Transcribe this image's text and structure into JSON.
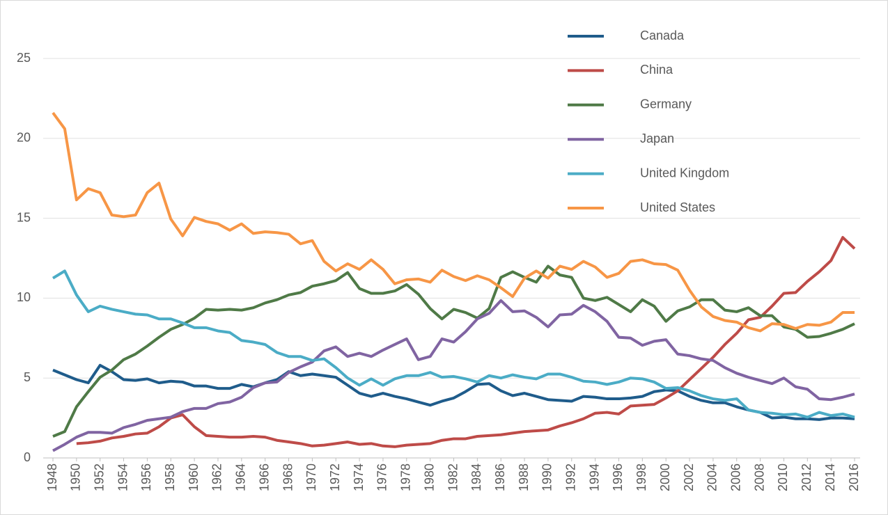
{
  "chart_data": {
    "type": "line",
    "x": [
      1948,
      1949,
      1950,
      1951,
      1952,
      1953,
      1954,
      1955,
      1956,
      1957,
      1958,
      1959,
      1960,
      1961,
      1962,
      1963,
      1964,
      1965,
      1966,
      1967,
      1968,
      1969,
      1970,
      1971,
      1972,
      1973,
      1974,
      1975,
      1976,
      1977,
      1978,
      1979,
      1980,
      1981,
      1982,
      1983,
      1984,
      1985,
      1986,
      1987,
      1988,
      1989,
      1990,
      1991,
      1992,
      1993,
      1994,
      1995,
      1996,
      1997,
      1998,
      1999,
      2000,
      2001,
      2002,
      2003,
      2004,
      2005,
      2006,
      2007,
      2008,
      2009,
      2010,
      2011,
      2012,
      2013,
      2014,
      2015,
      2016
    ],
    "xlim": [
      1948,
      2016
    ],
    "xticks": [
      1948,
      1950,
      1952,
      1954,
      1956,
      1958,
      1960,
      1962,
      1964,
      1966,
      1968,
      1970,
      1972,
      1974,
      1976,
      1978,
      1980,
      1982,
      1984,
      1986,
      1988,
      1990,
      1992,
      1994,
      1996,
      1998,
      2000,
      2002,
      2004,
      2006,
      2008,
      2010,
      2012,
      2014,
      2016
    ],
    "ylim": [
      0,
      25
    ],
    "yticks": [
      0,
      5,
      10,
      15,
      20,
      25
    ],
    "grid": true,
    "legend": "top-right",
    "series": [
      {
        "name": "Canada",
        "color": "#1f5c8b",
        "values": [
          5.5,
          5.2,
          4.9,
          4.7,
          5.8,
          5.4,
          4.9,
          4.85,
          4.95,
          4.7,
          4.8,
          4.75,
          4.5,
          4.5,
          4.35,
          4.35,
          4.6,
          4.45,
          4.7,
          4.9,
          5.4,
          5.15,
          5.25,
          5.15,
          5.05,
          4.55,
          4.05,
          3.85,
          4.05,
          3.85,
          3.7,
          3.5,
          3.3,
          3.55,
          3.75,
          4.15,
          4.6,
          4.65,
          4.2,
          3.9,
          4.05,
          3.85,
          3.65,
          3.6,
          3.55,
          3.85,
          3.8,
          3.7,
          3.7,
          3.75,
          3.85,
          4.15,
          4.25,
          4.2,
          3.85,
          3.6,
          3.45,
          3.45,
          3.2,
          3.0,
          2.85,
          2.5,
          2.55,
          2.45,
          2.45,
          2.4,
          2.5,
          2.5,
          2.45
        ]
      },
      {
        "name": "China",
        "color": "#be4b48",
        "values": [
          null,
          null,
          0.9,
          0.95,
          1.05,
          1.25,
          1.35,
          1.5,
          1.55,
          1.95,
          2.5,
          2.7,
          1.95,
          1.4,
          1.35,
          1.3,
          1.3,
          1.35,
          1.3,
          1.1,
          1.0,
          0.9,
          0.75,
          0.8,
          0.9,
          1.0,
          0.85,
          0.9,
          0.75,
          0.7,
          0.8,
          0.85,
          0.9,
          1.1,
          1.2,
          1.2,
          1.35,
          1.4,
          1.45,
          1.55,
          1.65,
          1.7,
          1.75,
          2.0,
          2.2,
          2.45,
          2.8,
          2.85,
          2.75,
          3.25,
          3.3,
          3.35,
          3.75,
          4.2,
          4.9,
          5.6,
          6.3,
          7.1,
          7.8,
          8.65,
          8.8,
          9.5,
          10.3,
          10.35,
          11.05,
          11.65,
          12.35,
          13.8,
          13.1
        ]
      },
      {
        "name": "Germany",
        "color": "#4f7a47",
        "values": [
          1.35,
          1.65,
          3.2,
          4.15,
          5.05,
          5.5,
          6.15,
          6.5,
          7.0,
          7.55,
          8.05,
          8.35,
          8.75,
          9.3,
          9.25,
          9.3,
          9.25,
          9.4,
          9.7,
          9.9,
          10.2,
          10.35,
          10.75,
          10.9,
          11.1,
          11.6,
          10.6,
          10.3,
          10.3,
          10.45,
          10.85,
          10.25,
          9.35,
          8.7,
          9.3,
          9.1,
          8.75,
          9.35,
          11.3,
          11.65,
          11.3,
          11.0,
          12.0,
          11.45,
          11.3,
          10.0,
          9.85,
          10.05,
          9.6,
          9.15,
          9.9,
          9.5,
          8.55,
          9.2,
          9.45,
          9.9,
          9.9,
          9.25,
          9.15,
          9.4,
          8.9,
          8.9,
          8.2,
          8.05,
          7.55,
          7.6,
          7.8,
          8.05,
          8.4
        ]
      },
      {
        "name": "Japan",
        "color": "#8064a2",
        "values": [
          0.45,
          0.85,
          1.3,
          1.6,
          1.6,
          1.55,
          1.9,
          2.1,
          2.35,
          2.45,
          2.55,
          2.9,
          3.1,
          3.1,
          3.4,
          3.5,
          3.8,
          4.4,
          4.7,
          4.75,
          5.35,
          5.7,
          6.0,
          6.7,
          6.95,
          6.35,
          6.55,
          6.35,
          6.75,
          7.1,
          7.45,
          6.15,
          6.35,
          7.45,
          7.25,
          7.9,
          8.7,
          9.05,
          9.85,
          9.15,
          9.2,
          8.8,
          8.2,
          8.95,
          9.0,
          9.55,
          9.15,
          8.55,
          7.55,
          7.5,
          7.05,
          7.3,
          7.4,
          6.5,
          6.4,
          6.2,
          6.1,
          5.65,
          5.3,
          5.05,
          4.85,
          4.65,
          5.0,
          4.45,
          4.3,
          3.7,
          3.65,
          3.8,
          4.0
        ]
      },
      {
        "name": "United Kingdom",
        "color": "#4bacc6",
        "values": [
          11.25,
          11.7,
          10.2,
          9.15,
          9.5,
          9.3,
          9.15,
          9.0,
          8.95,
          8.7,
          8.7,
          8.45,
          8.15,
          8.15,
          7.95,
          7.85,
          7.35,
          7.25,
          7.1,
          6.6,
          6.35,
          6.35,
          6.1,
          6.2,
          5.65,
          5.0,
          4.55,
          4.95,
          4.55,
          4.95,
          5.15,
          5.15,
          5.35,
          5.05,
          5.1,
          4.95,
          4.75,
          5.15,
          5.0,
          5.2,
          5.05,
          4.95,
          5.25,
          5.25,
          5.05,
          4.8,
          4.75,
          4.6,
          4.75,
          5.0,
          4.95,
          4.75,
          4.35,
          4.4,
          4.2,
          3.9,
          3.7,
          3.6,
          3.7,
          3.0,
          2.85,
          2.8,
          2.7,
          2.75,
          2.55,
          2.85,
          2.65,
          2.75,
          2.55
        ]
      },
      {
        "name": "United States",
        "color": "#f79646",
        "values": [
          21.6,
          20.6,
          16.15,
          16.85,
          16.6,
          15.2,
          15.1,
          15.2,
          16.6,
          17.2,
          14.95,
          13.9,
          15.05,
          14.8,
          14.65,
          14.25,
          14.65,
          14.05,
          14.15,
          14.1,
          14.0,
          13.4,
          13.6,
          12.3,
          11.7,
          12.15,
          11.8,
          12.4,
          11.8,
          10.9,
          11.15,
          11.2,
          11.0,
          11.75,
          11.35,
          11.1,
          11.4,
          11.15,
          10.65,
          10.1,
          11.25,
          11.7,
          11.25,
          12.0,
          11.8,
          12.3,
          11.95,
          11.3,
          11.55,
          12.3,
          12.4,
          12.15,
          12.1,
          11.75,
          10.5,
          9.45,
          8.85,
          8.6,
          8.5,
          8.15,
          7.95,
          8.4,
          8.35,
          8.1,
          8.35,
          8.3,
          8.5,
          9.1,
          9.1
        ]
      }
    ]
  }
}
